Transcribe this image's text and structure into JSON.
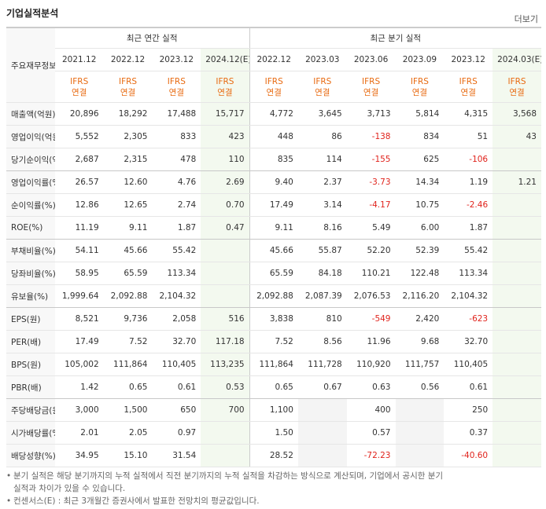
{
  "header": {
    "title": "기업실적분석",
    "more": "더보기"
  },
  "table": {
    "corner": "주요재무정보",
    "groups": [
      {
        "label": "최근 연간 실적",
        "span": 4
      },
      {
        "label": "최근 분기 실적",
        "span": 6
      }
    ],
    "periods": [
      "2021.12",
      "2022.12",
      "2023.12",
      "2024.12(E)",
      "2022.12",
      "2023.03",
      "2023.06",
      "2023.09",
      "2023.12",
      "2024.03(E)"
    ],
    "estimate": [
      false,
      false,
      false,
      true,
      false,
      false,
      false,
      false,
      false,
      true
    ],
    "basis": [
      [
        "IFRS",
        "연결"
      ],
      [
        "IFRS",
        "연결"
      ],
      [
        "IFRS",
        "연결"
      ],
      [
        "IFRS",
        "연결"
      ],
      [
        "IFRS",
        "연결"
      ],
      [
        "IFRS",
        "연결"
      ],
      [
        "IFRS",
        "연결"
      ],
      [
        "IFRS",
        "연결"
      ],
      [
        "IFRS",
        "연결"
      ],
      [
        "IFRS",
        "연결"
      ]
    ],
    "rows": [
      {
        "label": "매출액(억원)",
        "cells": [
          "20,896",
          "18,292",
          "17,488",
          "15,717",
          "4,772",
          "3,645",
          "3,713",
          "5,814",
          "4,315",
          "3,568"
        ]
      },
      {
        "label": "영업이익(억원)",
        "cells": [
          "5,552",
          "2,305",
          "833",
          "423",
          "448",
          "86",
          "-138",
          "834",
          "51",
          "43"
        ]
      },
      {
        "label": "당기순이익(억원)",
        "cells": [
          "2,687",
          "2,315",
          "478",
          "110",
          "835",
          "114",
          "-155",
          "625",
          "-106",
          null
        ]
      },
      {
        "label": "영업이익률(%)",
        "cells": [
          "26.57",
          "12.60",
          "4.76",
          "2.69",
          "9.40",
          "2.37",
          "-3.73",
          "14.34",
          "1.19",
          "1.21"
        ]
      },
      {
        "label": "순이익률(%)",
        "cells": [
          "12.86",
          "12.65",
          "2.74",
          "0.70",
          "17.49",
          "3.14",
          "-4.17",
          "10.75",
          "-2.46",
          null
        ]
      },
      {
        "label": "ROE(%)",
        "cells": [
          "11.19",
          "9.11",
          "1.87",
          "0.47",
          "9.11",
          "8.16",
          "5.49",
          "6.00",
          "1.87",
          null
        ]
      },
      {
        "label": "부채비율(%)",
        "cells": [
          "54.11",
          "45.66",
          "55.42",
          null,
          "45.66",
          "55.87",
          "52.20",
          "52.39",
          "55.42",
          null
        ]
      },
      {
        "label": "당좌비율(%)",
        "cells": [
          "58.95",
          "65.59",
          "113.34",
          null,
          "65.59",
          "84.18",
          "110.21",
          "122.48",
          "113.34",
          null
        ]
      },
      {
        "label": "유보율(%)",
        "cells": [
          "1,999.64",
          "2,092.88",
          "2,104.32",
          null,
          "2,092.88",
          "2,087.39",
          "2,076.53",
          "2,116.20",
          "2,104.32",
          null
        ]
      },
      {
        "label": "EPS(원)",
        "cells": [
          "8,521",
          "9,736",
          "2,058",
          "516",
          "3,838",
          "810",
          "-549",
          "2,420",
          "-623",
          null
        ]
      },
      {
        "label": "PER(배)",
        "cells": [
          "17.49",
          "7.52",
          "32.70",
          "117.18",
          "7.52",
          "8.56",
          "11.96",
          "9.68",
          "32.70",
          null
        ]
      },
      {
        "label": "BPS(원)",
        "cells": [
          "105,002",
          "111,864",
          "110,405",
          "113,235",
          "111,864",
          "111,728",
          "110,920",
          "111,757",
          "110,405",
          null
        ]
      },
      {
        "label": "PBR(배)",
        "cells": [
          "1.42",
          "0.65",
          "0.61",
          "0.53",
          "0.65",
          "0.67",
          "0.63",
          "0.56",
          "0.61",
          null
        ]
      },
      {
        "label": "주당배당금(원)",
        "cells": [
          "3,000",
          "1,500",
          "650",
          "700",
          "1,100",
          null,
          "400",
          null,
          "250",
          null
        ]
      },
      {
        "label": "시가배당률(%)",
        "cells": [
          "2.01",
          "2.05",
          "0.97",
          null,
          "1.50",
          null,
          "0.57",
          null,
          "0.37",
          null
        ]
      },
      {
        "label": "배당성향(%)",
        "cells": [
          "34.95",
          "15.10",
          "31.54",
          null,
          "28.52",
          null,
          "-72.23",
          null,
          "-40.60",
          null
        ]
      }
    ]
  },
  "notes": [
    "분기 실적은 해당 분기까지의 누적 실적에서 직전 분기까지의 누적 실적을 차감하는 방식으로 계산되며, 기업에서 공시한 분기 실적과 차이가 있을 수 있습니다.",
    "컨센서스(E) : 최근 3개월간 증권사에서 발표한 전망치의 평균값입니다."
  ]
}
